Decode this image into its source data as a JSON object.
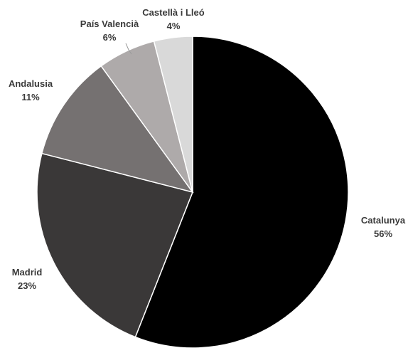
{
  "chart_data": {
    "type": "pie",
    "title": "",
    "start": "12 o'clock",
    "direction": "clockwise",
    "slices": [
      {
        "label": "Catalunya",
        "value": 56,
        "value_label": "56%",
        "color": "#000000"
      },
      {
        "label": "Madrid",
        "value": 23,
        "value_label": "23%",
        "color": "#3a3838"
      },
      {
        "label": "Andalusia",
        "value": 11,
        "value_label": "11%",
        "color": "#757171"
      },
      {
        "label": "País Valencià",
        "value": 6,
        "value_label": "6%",
        "color": "#aeaaaa"
      },
      {
        "label": "Castellà i Lleó",
        "value": 4,
        "value_label": "4%",
        "color": "#d9d9d9"
      }
    ]
  }
}
